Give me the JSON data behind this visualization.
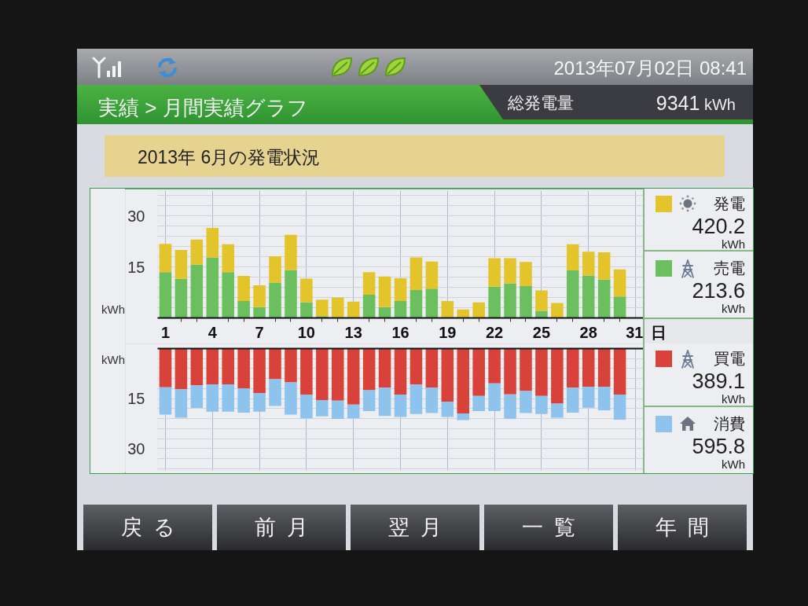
{
  "chart_data": [
    {
      "type": "bar",
      "title": "2013年 6月の発電状況",
      "xlabel": "日",
      "ylabel": "kWh",
      "stacked": true,
      "legend": "right",
      "grid": true,
      "x": [
        1,
        2,
        3,
        4,
        5,
        6,
        7,
        8,
        9,
        10,
        11,
        12,
        13,
        14,
        15,
        16,
        17,
        18,
        19,
        20,
        21,
        22,
        23,
        24,
        25,
        26,
        27,
        28,
        29,
        30
      ],
      "xlim": [
        0.5,
        31.5
      ],
      "xticks": [
        1,
        {
          "value": 2,
          "label": null
        },
        {
          "value": 3,
          "label": null
        },
        4,
        {
          "value": 5,
          "label": null
        },
        {
          "value": 6,
          "label": null
        },
        7,
        {
          "value": 8,
          "label": null
        },
        {
          "value": 9,
          "label": null
        },
        10,
        {
          "value": 11,
          "label": null
        },
        {
          "value": 12,
          "label": null
        },
        13,
        {
          "value": 14,
          "label": null
        },
        {
          "value": 15,
          "label": null
        },
        16,
        {
          "value": 17,
          "label": null
        },
        {
          "value": 18,
          "label": null
        },
        19,
        {
          "value": 20,
          "label": null
        },
        {
          "value": 21,
          "label": null
        },
        22,
        {
          "value": 23,
          "label": null
        },
        {
          "value": 24,
          "label": null
        },
        25,
        {
          "value": 26,
          "label": null
        },
        {
          "value": 27,
          "label": null
        },
        28,
        {
          "value": 29,
          "label": null
        },
        {
          "value": 30,
          "label": null
        },
        31
      ],
      "ylim": [
        0,
        37.5
      ],
      "yticks": [
        {
          "value": 3,
          "label": null
        },
        {
          "value": 6,
          "label": null
        },
        {
          "value": 9,
          "label": null
        },
        {
          "value": 12,
          "label": null
        },
        15,
        {
          "value": 18,
          "label": null
        },
        {
          "value": 21,
          "label": null
        },
        {
          "value": 24,
          "label": null
        },
        {
          "value": 27,
          "label": null
        },
        30,
        {
          "value": 33,
          "label": null
        },
        {
          "value": 36,
          "label": null
        }
      ],
      "series": [
        {
          "name": "売電",
          "color": "#6cbf5f",
          "values": [
            13.5,
            11.5,
            15.7,
            17.8,
            13.5,
            5.0,
            3.2,
            10.4,
            14.1,
            4.6,
            0.5,
            0,
            0,
            6.8,
            3.2,
            5.0,
            8.2,
            8.6,
            0,
            0,
            0,
            9.2,
            10.2,
            9.4,
            2.1,
            0,
            14.0,
            12.5,
            11.3,
            6.3
          ]
        },
        {
          "name": "発電",
          "color": "#e3c42b",
          "values": [
            8.3,
            8.5,
            7.4,
            8.7,
            8.2,
            7.4,
            6.4,
            7.8,
            10.4,
            7.0,
            4.9,
            6.0,
            4.8,
            6.7,
            9.0,
            6.7,
            9.6,
            8.0,
            5.0,
            2.5,
            4.6,
            8.4,
            7.4,
            7.1,
            6.0,
            4.4,
            7.7,
            7.0,
            8.0,
            8.0
          ]
        }
      ],
      "annotations": [
        "213.6 kWh",
        "420.2 kWh",
        "実績 > 月間実績グラフ",
        "総発電量",
        "9341 kWh",
        "2013年07月02日 08:41"
      ]
    },
    {
      "type": "bar",
      "ylabel": "kWh",
      "stacked": true,
      "legend": "right",
      "grid": true,
      "tick_labels": "y",
      "x": [
        1,
        2,
        3,
        4,
        5,
        6,
        7,
        8,
        9,
        10,
        11,
        12,
        13,
        14,
        15,
        16,
        17,
        18,
        19,
        20,
        21,
        22,
        23,
        24,
        25,
        26,
        27,
        28,
        29,
        30
      ],
      "xlim": [
        0.5,
        31.5
      ],
      "xticks": [
        1,
        4,
        7,
        10,
        13,
        16,
        19,
        22,
        25,
        28,
        31
      ],
      "ylim": [
        36.5,
        0
      ],
      "yticks": [
        {
          "value": 3,
          "label": null
        },
        {
          "value": 6,
          "label": null
        },
        {
          "value": 9,
          "label": null
        },
        {
          "value": 12,
          "label": null
        },
        15,
        {
          "value": 18,
          "label": null
        },
        {
          "value": 21,
          "label": null
        },
        {
          "value": 24,
          "label": null
        },
        {
          "value": 27,
          "label": null
        },
        30,
        {
          "value": 33,
          "label": null
        },
        {
          "value": 36,
          "label": null
        }
      ],
      "series": [
        {
          "name": "買電",
          "color": "#d9413b",
          "values": [
            11.6,
            12.2,
            11.0,
            10.7,
            10.7,
            11.9,
            13.3,
            9.2,
            10.1,
            13.8,
            15.4,
            15.6,
            16.8,
            12.5,
            11.7,
            13.8,
            10.8,
            11.7,
            15.9,
            19.4,
            14.2,
            10.4,
            13.7,
            12.7,
            14.2,
            16.5,
            11.7,
            11.4,
            11.4,
            13.8
          ]
        },
        {
          "name": "消費",
          "color": "#8ec3ee",
          "values": [
            8.2,
            8.5,
            6.8,
            8.2,
            8.2,
            7.3,
            5.6,
            8.0,
            9.7,
            7.1,
            4.9,
            5.5,
            4.1,
            6.2,
            8.5,
            6.7,
            8.8,
            7.6,
            4.6,
            2.0,
            4.5,
            8.3,
            7.3,
            6.6,
            5.4,
            4.2,
            7.5,
            6.3,
            7.1,
            7.5
          ]
        }
      ],
      "annotations": [
        "389.1 kWh",
        "595.8 kWh",
        "戻る",
        "前月",
        "翌月",
        "一覧",
        "年間"
      ]
    }
  ]
}
